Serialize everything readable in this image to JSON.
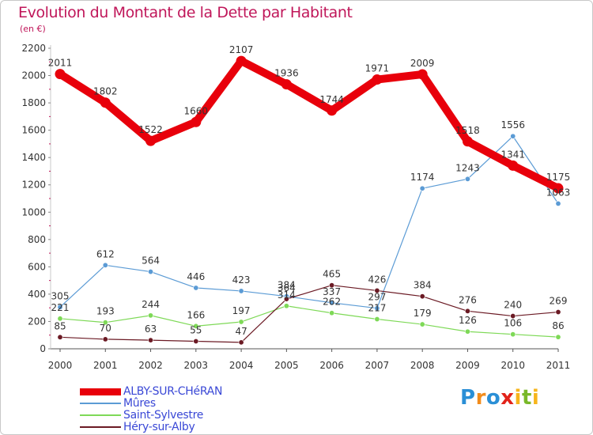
{
  "header": {
    "title": "Evolution du Montant de la Dette par Habitant",
    "subtitle": "(en €)"
  },
  "logo": {
    "text": "Proxiti"
  },
  "chart_data": {
    "type": "line",
    "title": "Evolution du Montant de la Dette par Habitant",
    "subtitle": "(en €)",
    "xlabel": "",
    "ylabel": "",
    "x": [
      "2000",
      "2001",
      "2002",
      "2003",
      "2004",
      "2005",
      "2006",
      "2007",
      "2008",
      "2009",
      "2010",
      "2011"
    ],
    "ylim": [
      0,
      2200
    ],
    "yticks": [
      0,
      200,
      400,
      600,
      800,
      1000,
      1200,
      1400,
      1600,
      1800,
      2000,
      2200
    ],
    "grid": false,
    "legend_position": "bottom-left",
    "series": [
      {
        "name": "ALBY-SUR-CHéRAN",
        "color": "#e8000b",
        "emphasis": true,
        "values": [
          2011,
          1802,
          1522,
          1660,
          2107,
          1936,
          1744,
          1971,
          2009,
          1518,
          1341,
          1175
        ]
      },
      {
        "name": "Mûres",
        "color": "#5b9bd5",
        "values": [
          305,
          612,
          564,
          446,
          423,
          384,
          337,
          297,
          1174,
          1243,
          1556,
          1063
        ]
      },
      {
        "name": "Saint-Sylvestre",
        "color": "#7ed957",
        "values": [
          221,
          193,
          244,
          166,
          197,
          314,
          262,
          217,
          179,
          126,
          106,
          86
        ]
      },
      {
        "name": "Héry-sur-Alby",
        "color": "#6b1a24",
        "values": [
          85,
          70,
          63,
          55,
          47,
          364,
          465,
          426,
          384,
          276,
          240,
          269
        ]
      }
    ]
  }
}
